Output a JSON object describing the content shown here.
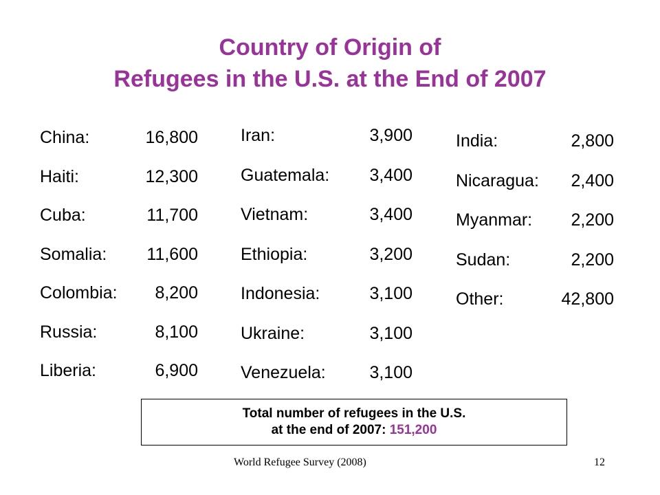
{
  "title": {
    "line1": "Country of Origin of",
    "line2": "Refugees in the U.S. at the End of 2007"
  },
  "columns": [
    [
      {
        "name": "China:",
        "value": "16,800"
      },
      {
        "name": "Haiti:",
        "value": "12,300"
      },
      {
        "name": "Cuba:",
        "value": "11,700"
      },
      {
        "name": "Somalia:",
        "value": "11,600"
      },
      {
        "name": "Colombia:",
        "value": "8,200"
      },
      {
        "name": "Russia:",
        "value": "8,100"
      },
      {
        "name": "Liberia:",
        "value": "6,900"
      }
    ],
    [
      {
        "name": "Iran:",
        "value": "3,900"
      },
      {
        "name": "Guatemala:",
        "value": "3,400"
      },
      {
        "name": "Vietnam:",
        "value": "3,400"
      },
      {
        "name": "Ethiopia:",
        "value": "3,200"
      },
      {
        "name": "Indonesia:",
        "value": "3,100"
      },
      {
        "name": "Ukraine:",
        "value": "3,100"
      },
      {
        "name": "Venezuela:",
        "value": "3,100"
      }
    ],
    [
      {
        "name": "India:",
        "value": "2,800"
      },
      {
        "name": "Nicaragua:",
        "value": "2,400"
      },
      {
        "name": "Myanmar:",
        "value": "2,200"
      },
      {
        "name": "Sudan:",
        "value": "2,200"
      },
      {
        "name": "Other:",
        "value": "42,800"
      }
    ]
  ],
  "total": {
    "line1": "Total number of refugees in the U.S.",
    "line2_prefix": "at the end of 2007:",
    "value": "151,200"
  },
  "footer": {
    "source": "World Refugee Survey (2008)",
    "page_number": "12"
  },
  "colors": {
    "accent": "#993399",
    "text": "#000000",
    "background": "#ffffff"
  }
}
